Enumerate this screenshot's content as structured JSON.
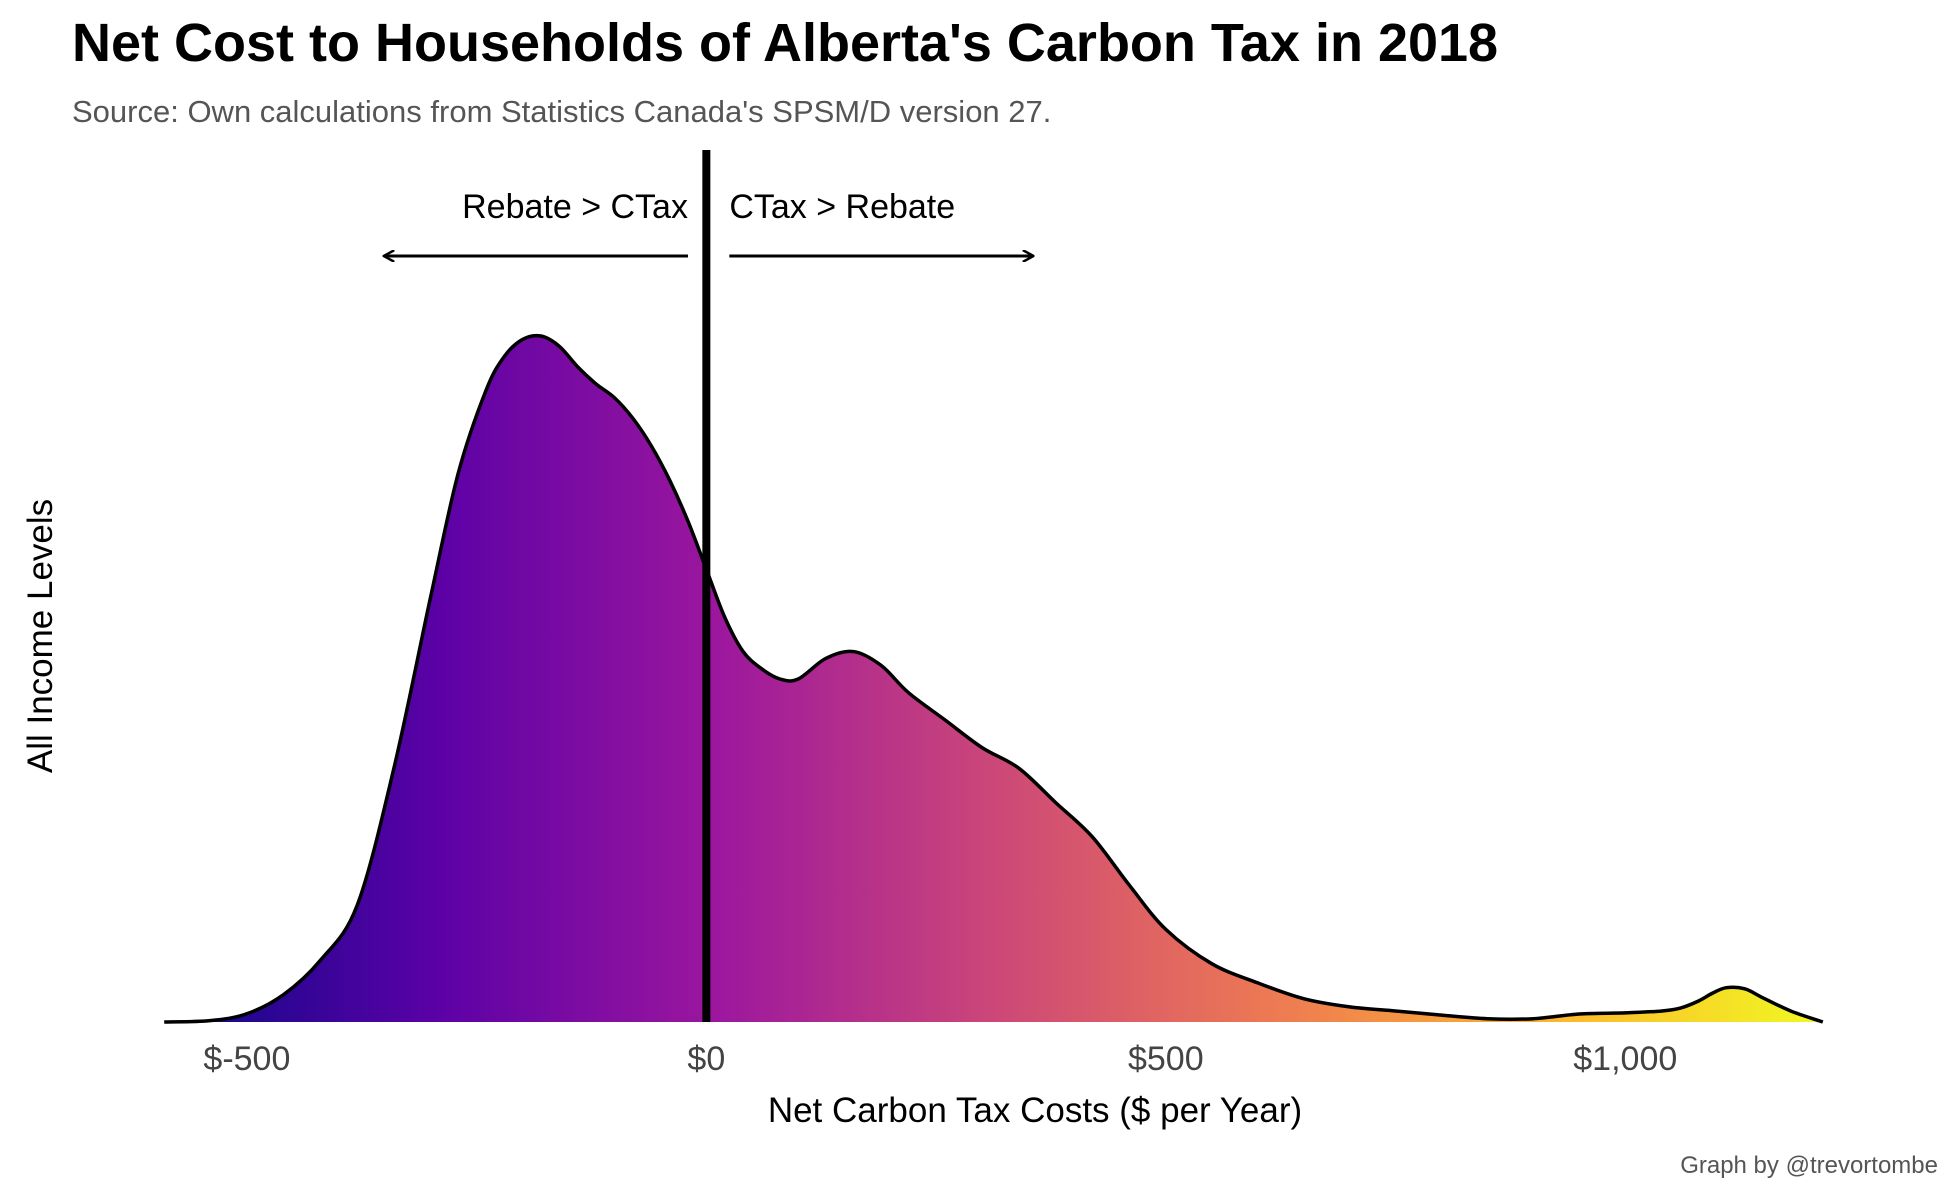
{
  "title": "Net Cost to Households of Alberta's Carbon Tax in 2018",
  "subtitle": "Source: Own calculations from Statistics Canada's SPSM/D version 27.",
  "caption": "Graph by @trevortombe",
  "chart_data": {
    "type": "area",
    "subtype": "density",
    "xlabel": "Net Carbon Tax Costs ($ per Year)",
    "ylabel": "All Income Levels",
    "xlim": [
      -600,
      1250
    ],
    "ylim": [
      0,
      1
    ],
    "x_ticks": [
      -500,
      0,
      500,
      1000
    ],
    "x_tick_labels": [
      "$-500",
      "$0",
      "$500",
      "$1,000"
    ],
    "y_ticks_shown": false,
    "grid": false,
    "fill_gradient": [
      "#0d0887",
      "#5c01a6",
      "#9c179e",
      "#cc4778",
      "#ed7953",
      "#fdb42f",
      "#f0f921"
    ],
    "reference_line_x": 0,
    "annotations": [
      {
        "label": "Rebate > CTax",
        "arrow_from": -20,
        "arrow_to": -350
      },
      {
        "label": "CTax > Rebate",
        "arrow_from": 25,
        "arrow_to": 355
      }
    ],
    "x": [
      -590,
      -540,
      -500,
      -460,
      -420,
      -380,
      -340,
      -300,
      -270,
      -240,
      -220,
      -200,
      -180,
      -160,
      -140,
      -120,
      -100,
      -80,
      -60,
      -40,
      -20,
      0,
      20,
      40,
      60,
      80,
      100,
      130,
      160,
      190,
      220,
      260,
      300,
      340,
      380,
      420,
      460,
      500,
      550,
      600,
      650,
      700,
      750,
      800,
      850,
      900,
      950,
      1000,
      1040,
      1060,
      1080,
      1095,
      1110,
      1130,
      1150,
      1180,
      1215
    ],
    "y": [
      0.0,
      0.002,
      0.012,
      0.04,
      0.09,
      0.17,
      0.37,
      0.62,
      0.8,
      0.92,
      0.97,
      0.995,
      1.0,
      0.985,
      0.955,
      0.93,
      0.91,
      0.88,
      0.84,
      0.79,
      0.73,
      0.66,
      0.59,
      0.54,
      0.515,
      0.5,
      0.5,
      0.53,
      0.54,
      0.52,
      0.48,
      0.44,
      0.4,
      0.37,
      0.32,
      0.27,
      0.2,
      0.135,
      0.085,
      0.057,
      0.034,
      0.022,
      0.016,
      0.01,
      0.0048,
      0.0048,
      0.0117,
      0.0133,
      0.0161,
      0.0203,
      0.0308,
      0.0421,
      0.05,
      0.0483,
      0.0351,
      0.0161,
      0.0
    ]
  }
}
